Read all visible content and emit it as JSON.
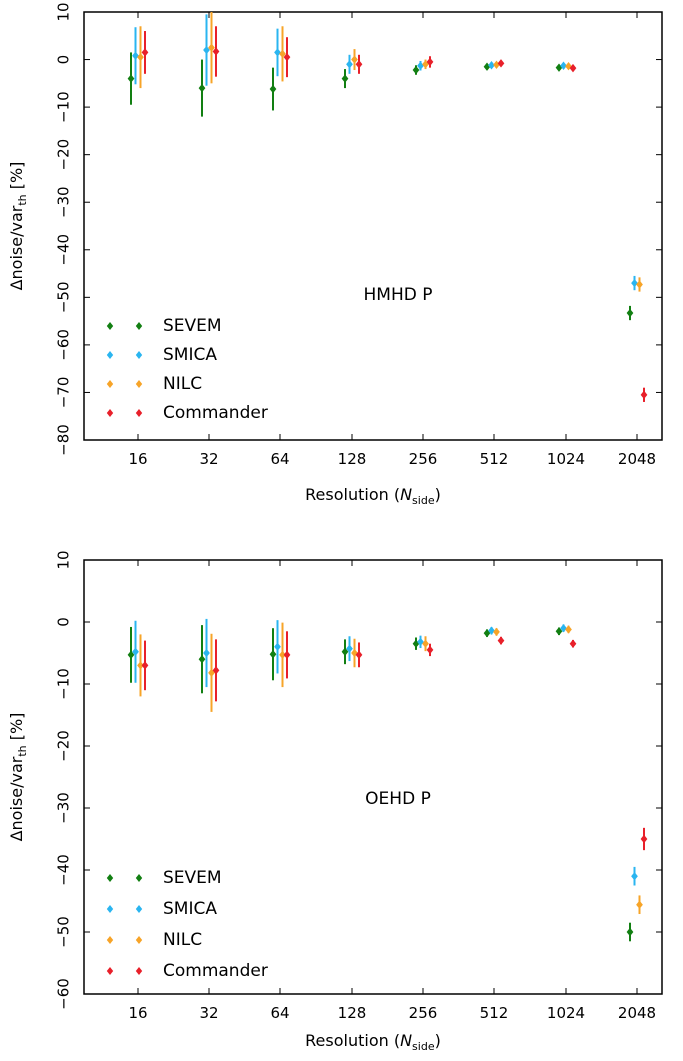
{
  "chart_data": [
    {
      "type": "scatter",
      "annotation": "HMHD P",
      "xlabel": "Resolution (N_side)",
      "xlabel_main": "Resolution (",
      "xlabel_var": "N",
      "xlabel_sub": "side",
      "xlabel_end": ")",
      "ylabel": "Δnoise/var_th [%]",
      "ylabel_main": "Δnoise/var",
      "ylabel_sub": "th",
      "ylabel_end": " [%]",
      "ylim": [
        -80,
        10
      ],
      "yticks": [
        "10",
        "0",
        "−10",
        "−20",
        "−30",
        "−40",
        "−50",
        "−60",
        "−70",
        "−80"
      ],
      "ytick_values": [
        10,
        0,
        -10,
        -20,
        -30,
        -40,
        -50,
        -60,
        -70,
        -80
      ],
      "categories": [
        "16",
        "32",
        "64",
        "128",
        "256",
        "512",
        "1024",
        "2048"
      ],
      "legend": "lower-left",
      "grid": false,
      "series": [
        {
          "name": "SEVEM",
          "color": "#127f12",
          "values": [
            -4,
            -6,
            -6.2,
            -4,
            -2.2,
            -1.5,
            -1.7,
            -53.3
          ],
          "err": [
            5.5,
            6,
            4.5,
            2,
            1,
            0.6,
            0.6,
            1.5
          ]
        },
        {
          "name": "SMICA",
          "color": "#2ab5f0",
          "values": [
            0.8,
            2,
            1.5,
            -1,
            -1.3,
            -1.2,
            -1.3,
            -47
          ],
          "err": [
            6,
            7.5,
            5,
            2,
            1,
            0.6,
            0.6,
            1.5
          ]
        },
        {
          "name": "NILC",
          "color": "#f7a428",
          "values": [
            0.5,
            2.5,
            1.2,
            0,
            -1,
            -1.1,
            -1.4,
            -47.3
          ],
          "err": [
            6.5,
            7.5,
            5.8,
            2.2,
            1,
            0.6,
            0.6,
            1.5
          ]
        },
        {
          "name": "Commander",
          "color": "#e8202a",
          "values": [
            1.5,
            1.7,
            0.5,
            -1,
            -0.5,
            -0.8,
            -1.8,
            -70.5
          ],
          "err": [
            4.5,
            5.3,
            4.2,
            2,
            1.2,
            0.6,
            0.6,
            1.5
          ]
        }
      ]
    },
    {
      "type": "scatter",
      "annotation": "OEHD P",
      "xlabel": "Resolution (N_side)",
      "xlabel_main": "Resolution (",
      "xlabel_var": "N",
      "xlabel_sub": "side",
      "xlabel_end": ")",
      "ylabel": "Δnoise/var_th [%]",
      "ylabel_main": "Δnoise/var",
      "ylabel_sub": "th",
      "ylabel_end": " [%]",
      "ylim": [
        -60,
        10
      ],
      "yticks": [
        "10",
        "0",
        "−10",
        "−20",
        "−30",
        "−40",
        "−50",
        "−60"
      ],
      "ytick_values": [
        10,
        0,
        -10,
        -20,
        -30,
        -40,
        -50,
        -60
      ],
      "categories": [
        "16",
        "32",
        "64",
        "128",
        "256",
        "512",
        "1024",
        "2048"
      ],
      "legend": "lower-left",
      "grid": false,
      "series": [
        {
          "name": "SEVEM",
          "color": "#127f12",
          "values": [
            -5.3,
            -6,
            -5.2,
            -4.8,
            -3.5,
            -1.8,
            -1.5,
            -50
          ],
          "err": [
            4.5,
            5.5,
            4.2,
            2,
            1,
            0.6,
            0.6,
            1.5
          ]
        },
        {
          "name": "SMICA",
          "color": "#2ab5f0",
          "values": [
            -4.8,
            -5,
            -4,
            -4.3,
            -3.2,
            -1.4,
            -1,
            -41
          ],
          "err": [
            5,
            5.5,
            4.3,
            2,
            1,
            0.6,
            0.6,
            1.5
          ]
        },
        {
          "name": "NILC",
          "color": "#f7a428",
          "values": [
            -7,
            -8.2,
            -5.3,
            -5,
            -3.5,
            -1.6,
            -1.2,
            -45.6
          ],
          "err": [
            5,
            6.3,
            5.2,
            2.3,
            1.2,
            0.6,
            0.6,
            1.5
          ]
        },
        {
          "name": "Commander",
          "color": "#e8202a",
          "values": [
            -7,
            -7.8,
            -5.3,
            -5.3,
            -4.5,
            -3,
            -3.5,
            -35
          ],
          "err": [
            4,
            5,
            3.8,
            2,
            1,
            0.6,
            0.6,
            1.8
          ]
        }
      ]
    }
  ]
}
